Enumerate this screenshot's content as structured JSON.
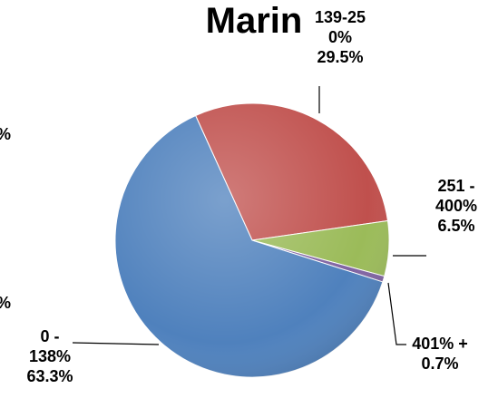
{
  "chart_data": {
    "type": "pie",
    "title": "Marin",
    "categories": [
      "139-250%",
      "251 - 400%",
      "401% +",
      "0 - 138%"
    ],
    "values": [
      29.5,
      6.5,
      0.7,
      63.3
    ],
    "value_labels": [
      "29.5%",
      "6.5%",
      "0.7%",
      "63.3%"
    ],
    "colors": [
      "#c0504d",
      "#9bbb59",
      "#8064a2",
      "#4f81bd"
    ],
    "annotations": [
      "%",
      "%"
    ]
  }
}
